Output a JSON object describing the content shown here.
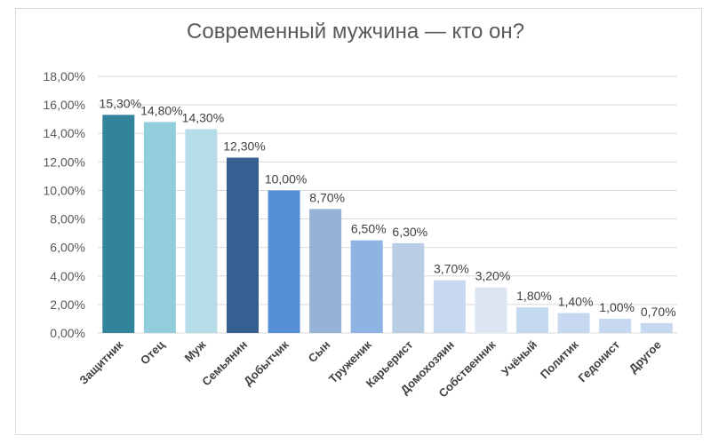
{
  "chart_data": {
    "type": "bar",
    "title": "Современный мужчина — кто он?",
    "xlabel": "",
    "ylabel": "",
    "ylim": [
      0,
      18
    ],
    "yticks": [
      "0,00%",
      "2,00%",
      "4,00%",
      "6,00%",
      "8,00%",
      "10,00%",
      "12,00%",
      "14,00%",
      "16,00%",
      "18,00%"
    ],
    "grid": true,
    "legend": "none",
    "categories": [
      "Защитник",
      "Отец",
      "Муж",
      "Семьянин",
      "Добытчик",
      "Сын",
      "Труженик",
      "Карьерист",
      "Домохозяин",
      "Собственник",
      "Учёный",
      "Политик",
      "Гедонист",
      "Другое"
    ],
    "values": [
      15.3,
      14.8,
      14.3,
      12.3,
      10.0,
      8.7,
      6.5,
      6.3,
      3.7,
      3.2,
      1.8,
      1.4,
      1.0,
      0.7
    ],
    "data_labels": [
      "15,30%",
      "14,80%",
      "14,30%",
      "12,30%",
      "10,00%",
      "8,70%",
      "6,50%",
      "6,30%",
      "3,70%",
      "3,20%",
      "1,80%",
      "1,40%",
      "1,00%",
      "0,70%"
    ],
    "colors": [
      "#31849b",
      "#92cddc",
      "#b7dde8",
      "#376092",
      "#558ed5",
      "#95b3d7",
      "#8db4e2",
      "#b9cde5",
      "#c6d9f1",
      "#dce6f2",
      "#c5d9f1",
      "#c6d9f0",
      "#c6d9f1",
      "#c6d9f1"
    ]
  }
}
